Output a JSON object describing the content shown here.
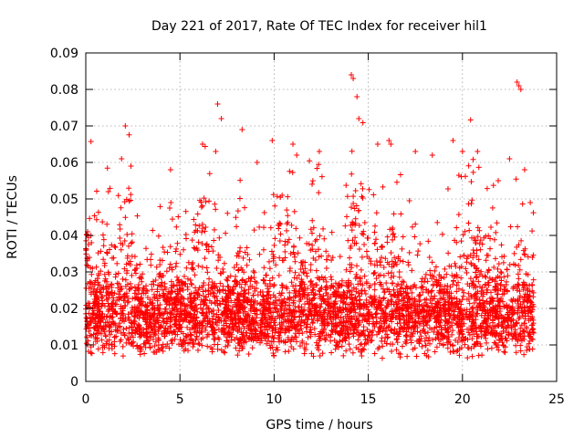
{
  "chart_data": {
    "type": "scatter",
    "title": "Day 221 of 2017, Rate Of TEC Index for receiver hil1",
    "xlabel": "GPS time / hours",
    "ylabel": "ROTI / TECUs",
    "xlim": [
      0,
      25
    ],
    "ylim": [
      0,
      0.09
    ],
    "x_ticks": [
      0,
      5,
      10,
      15,
      20,
      25
    ],
    "y_ticks": [
      0,
      0.01,
      0.02,
      0.03,
      0.04,
      0.05,
      0.06,
      0.07,
      0.08,
      0.09
    ],
    "x_tick_labels": [
      "0",
      "5",
      "10",
      "15",
      "20",
      "25"
    ],
    "y_tick_labels": [
      "0",
      "0.01",
      "0.02",
      "0.03",
      "0.04",
      "0.05",
      "0.06",
      "0.07",
      "0.08",
      "0.09"
    ],
    "grid": true,
    "marker": "+",
    "marker_color": "#ff0000",
    "x_range_of_data": [
      0,
      23.8
    ],
    "series": [
      {
        "values_x": [
          0.1,
          0.3,
          1.2,
          1.9,
          2.1,
          2.4,
          4.5,
          6.2,
          6.9,
          7.0,
          7.2,
          8.3,
          9.1,
          9.9,
          11.0,
          11.2,
          12.4,
          14.1,
          14.2,
          14.4,
          14.5,
          15.5,
          16.1,
          16.2,
          17.5,
          18.4,
          19.5,
          20.0,
          20.8,
          21.9,
          22.5,
          22.9,
          23.0,
          23.1,
          23.3,
          23.6
        ],
        "values_y": [
          0.041,
          0.038,
          0.052,
          0.061,
          0.07,
          0.059,
          0.058,
          0.065,
          0.063,
          0.076,
          0.072,
          0.069,
          0.06,
          0.066,
          0.065,
          0.062,
          0.063,
          0.084,
          0.083,
          0.078,
          0.072,
          0.065,
          0.066,
          0.065,
          0.063,
          0.062,
          0.066,
          0.063,
          0.063,
          0.055,
          0.061,
          0.082,
          0.081,
          0.08,
          0.058,
          0.049
        ]
      }
    ]
  }
}
